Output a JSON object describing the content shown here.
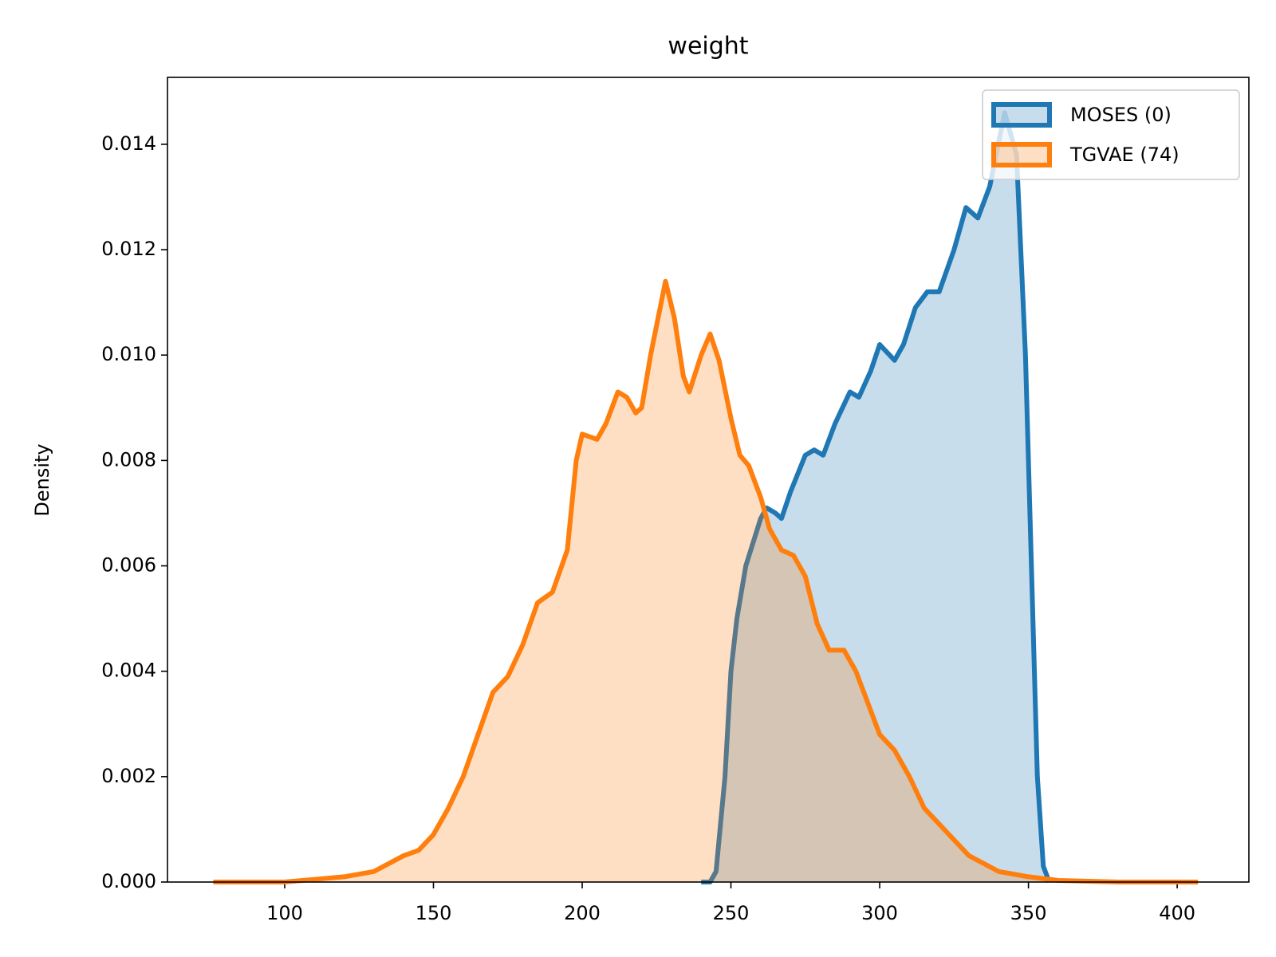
{
  "chart_data": {
    "type": "area",
    "title": "weight",
    "y_label": "Density",
    "xlim": [
      60.6,
      424.1
    ],
    "ylim": [
      0,
      0.01527
    ],
    "xticks": [
      100,
      150,
      200,
      250,
      300,
      350,
      400
    ],
    "yticks": [
      {
        "value": 0,
        "label": "0.000"
      },
      {
        "value": 0.002,
        "label": "0.002"
      },
      {
        "value": 0.004,
        "label": "0.004"
      },
      {
        "value": 0.006,
        "label": "0.006"
      },
      {
        "value": 0.008,
        "label": "0.008"
      },
      {
        "value": 0.01,
        "label": "0.010"
      },
      {
        "value": 0.012,
        "label": "0.012"
      },
      {
        "value": 0.014,
        "label": "0.014"
      }
    ],
    "legend": "upper right",
    "series": [
      {
        "name": "MOSES (0)",
        "color": "#1f77b4",
        "x": [
          240,
          243,
          245,
          248,
          250,
          252,
          255,
          260,
          262,
          265,
          267,
          270,
          275,
          278,
          281,
          285,
          290,
          293,
          297,
          300,
          305,
          308,
          312,
          316,
          320,
          325,
          329,
          333,
          337,
          342,
          346,
          349,
          351,
          353,
          355,
          357
        ],
        "values": [
          0,
          0,
          0.0002,
          0.002,
          0.004,
          0.005,
          0.006,
          0.0069,
          0.0071,
          0.007,
          0.0069,
          0.0074,
          0.0081,
          0.0082,
          0.0081,
          0.0087,
          0.0093,
          0.0092,
          0.0097,
          0.0102,
          0.0099,
          0.0102,
          0.0109,
          0.0112,
          0.0112,
          0.012,
          0.0128,
          0.0126,
          0.0132,
          0.0146,
          0.0138,
          0.01,
          0.006,
          0.002,
          0.0003,
          0
        ]
      },
      {
        "name": "TGVAE (74)",
        "color": "#ff7f0e",
        "x": [
          76,
          100,
          110,
          120,
          130,
          140,
          145,
          150,
          155,
          160,
          165,
          170,
          175,
          180,
          185,
          190,
          195,
          198,
          200,
          205,
          208,
          212,
          215,
          218,
          220,
          223,
          228,
          231,
          234,
          236,
          240,
          243,
          246,
          250,
          253,
          256,
          260,
          263,
          267,
          271,
          275,
          279,
          283,
          288,
          292,
          296,
          300,
          305,
          310,
          315,
          320,
          325,
          330,
          340,
          350,
          360,
          380,
          407
        ],
        "values": [
          0,
          0,
          5e-05,
          0.0001,
          0.0002,
          0.0005,
          0.0006,
          0.0009,
          0.0014,
          0.002,
          0.0028,
          0.0036,
          0.0039,
          0.0045,
          0.0053,
          0.0055,
          0.0063,
          0.008,
          0.0085,
          0.0084,
          0.0087,
          0.0093,
          0.0092,
          0.0089,
          0.009,
          0.01,
          0.0114,
          0.0107,
          0.0096,
          0.0093,
          0.01,
          0.0104,
          0.0099,
          0.0088,
          0.0081,
          0.0079,
          0.0073,
          0.0067,
          0.0063,
          0.0062,
          0.0058,
          0.0049,
          0.0044,
          0.0044,
          0.004,
          0.0034,
          0.0028,
          0.0025,
          0.002,
          0.0014,
          0.0011,
          0.0008,
          0.0005,
          0.0002,
          0.0001,
          3e-05,
          0,
          0
        ]
      }
    ]
  }
}
